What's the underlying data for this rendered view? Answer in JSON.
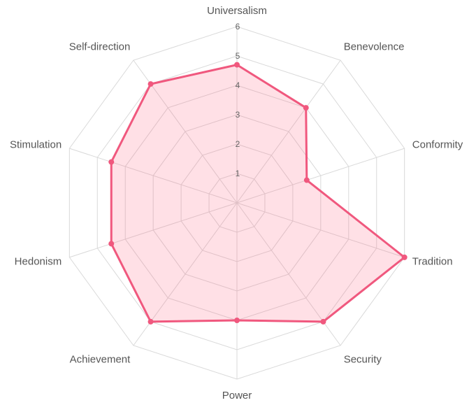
{
  "chart_data": {
    "type": "radar",
    "title": "",
    "categories": [
      "Universalism",
      "Benevolence",
      "Conformity",
      "Tradition",
      "Security",
      "Power",
      "Achievement",
      "Hedonism",
      "Stimulation",
      "Self-direction"
    ],
    "series": [
      {
        "values": [
          4.7,
          4.0,
          2.5,
          6.0,
          5.0,
          4.0,
          5.0,
          4.5,
          4.5,
          5.0
        ]
      }
    ],
    "rlim": [
      0,
      6
    ],
    "ticks": [
      "1",
      "2",
      "3",
      "4",
      "5",
      "6"
    ],
    "grid": true,
    "legend": "none",
    "colors": {
      "line": "#f0587e",
      "fill": "rgba(255, 99, 132, 0.2)",
      "point": "#f0587e",
      "grid": "#d9d9d9",
      "label": "#555555"
    }
  }
}
